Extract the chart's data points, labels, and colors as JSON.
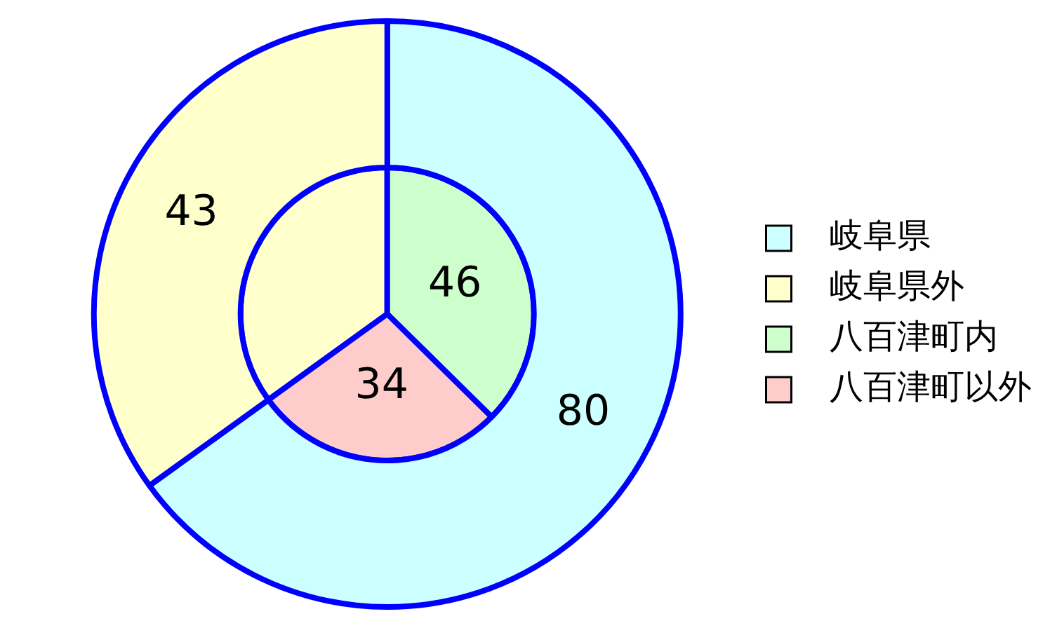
{
  "chart_data": {
    "type": "pie",
    "categories": [
      "岐阜県",
      "岐阜県外",
      "八百津町内",
      "八百津町以外"
    ],
    "colors": [
      "#ccffff",
      "#ffffcc",
      "#ccffcc",
      "#ffcccc"
    ],
    "legend": "right",
    "series": [
      {
        "values": [
          80,
          43,
          null,
          null
        ],
        "value_labels": [
          "80",
          "43",
          null,
          null
        ]
      },
      {
        "values": [
          null,
          43,
          46,
          34
        ],
        "value_labels": [
          null,
          null,
          "46",
          "34"
        ]
      }
    ]
  }
}
